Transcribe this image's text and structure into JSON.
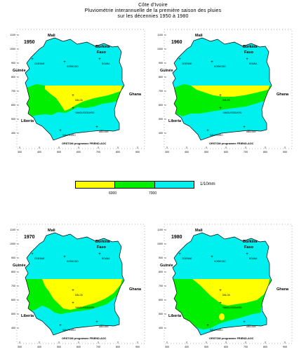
{
  "title": {
    "line1": "Côte d'Ivoire",
    "line2": "Pluviométrie interannuelle de la première saison des pluies",
    "line3": "sur les décennies 1950 à 1980"
  },
  "maps": [
    {
      "year": "1950"
    },
    {
      "year": "1960"
    },
    {
      "year": "1970"
    },
    {
      "year": "1980"
    }
  ],
  "map_labels": {
    "mali": "Mali",
    "burkina": "Burkina",
    "faso": "Faso",
    "guinee": "Guinée",
    "ghana": "Ghana",
    "liberia": "Liberia",
    "credit": "ORSTOM programme FRIEND-AOC",
    "cities": [
      "ODIENNE",
      "KORHOGO",
      "BOUNA",
      "DALOA",
      "YAMOUSSOUKRO",
      "SAN PEDRO",
      "ABIDJAN"
    ]
  },
  "y_ticks": [
    "1100",
    "1000",
    "900",
    "800",
    "700",
    "600",
    "500",
    "400"
  ],
  "x_ticks": [
    "300",
    "400",
    "500",
    "600",
    "700",
    "800",
    "900"
  ],
  "legend": {
    "colors": [
      "#ffff00",
      "#00ee00",
      "#00f0f0"
    ],
    "thresholds": [
      "6000",
      "7000"
    ],
    "unit": "1/10mm"
  }
}
